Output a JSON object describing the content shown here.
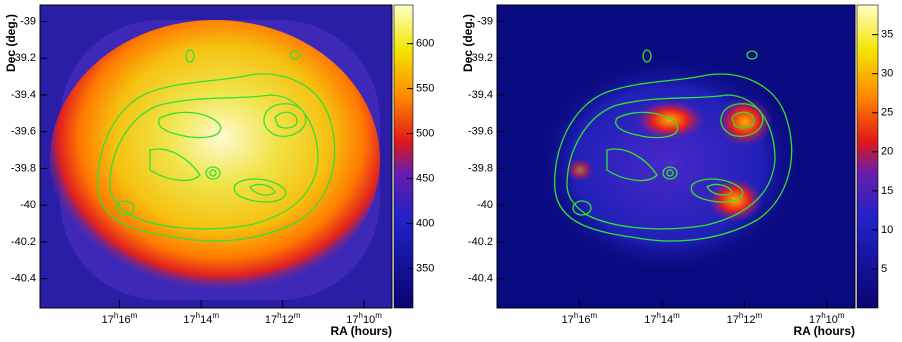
{
  "chart_data": [
    {
      "type": "heatmap",
      "ylabel": "Dec (deg.)",
      "xlabel": "RA (hours)",
      "ylim": [
        -40.56,
        -38.91
      ],
      "yticks": [
        -39,
        -39.2,
        -39.4,
        -39.6,
        -39.8,
        -40,
        -40.2,
        -40.4
      ],
      "xlim": [
        17.2992,
        17.1553
      ],
      "xticks": [
        {
          "value": 17.2667,
          "label": [
            "17",
            "h",
            "16",
            "m"
          ]
        },
        {
          "value": 17.2333,
          "label": [
            "17",
            "h",
            "14",
            "m"
          ]
        },
        {
          "value": 17.2,
          "label": [
            "17",
            "h",
            "12",
            "m"
          ]
        },
        {
          "value": 17.1667,
          "label": [
            "17",
            "h",
            "10",
            "m"
          ]
        }
      ],
      "zlim": [
        306,
        643
      ],
      "zticks": [
        350,
        400,
        450,
        500,
        550,
        600
      ]
    },
    {
      "type": "heatmap",
      "ylabel": "Dec (deg.)",
      "xlabel": "RA (hours)",
      "ylim": [
        -40.56,
        -38.91
      ],
      "yticks": [
        -39,
        -39.2,
        -39.4,
        -39.6,
        -39.8,
        -40,
        -40.2,
        -40.4
      ],
      "xlim": [
        17.3,
        17.1553
      ],
      "xticks": [
        {
          "value": 17.2667,
          "label": [
            "17",
            "h",
            "16",
            "m"
          ]
        },
        {
          "value": 17.2333,
          "label": [
            "17",
            "h",
            "14",
            "m"
          ]
        },
        {
          "value": 17.2,
          "label": [
            "17",
            "h",
            "12",
            "m"
          ]
        },
        {
          "value": 17.1667,
          "label": [
            "17",
            "h",
            "10",
            "m"
          ]
        }
      ],
      "zlim": [
        0,
        38.8
      ],
      "zticks": [
        5,
        10,
        15,
        20,
        25,
        30,
        35
      ]
    }
  ]
}
